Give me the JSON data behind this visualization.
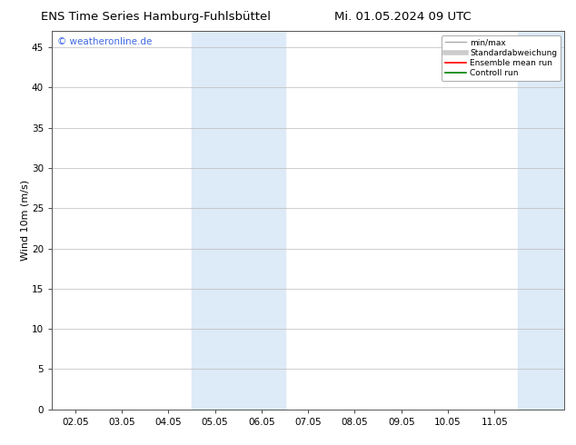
{
  "title_left": "ENS Time Series Hamburg-Fuhlsbüttel",
  "title_right": "Mi. 01.05.2024 09 UTC",
  "ylabel": "Wind 10m (m/s)",
  "xlabel_ticks": [
    "02.05",
    "03.05",
    "04.05",
    "05.05",
    "06.05",
    "07.05",
    "08.05",
    "09.05",
    "10.05",
    "11.05"
  ],
  "ylim": [
    0,
    47
  ],
  "yticks": [
    0,
    5,
    10,
    15,
    20,
    25,
    30,
    35,
    40,
    45
  ],
  "background_color": "#ffffff",
  "plot_bg_color": "#ffffff",
  "shaded_regions": [
    {
      "x_start": 4.0,
      "x_end": 6.0,
      "color": "#ddeaf7"
    },
    {
      "x_start": 11.0,
      "x_end": 12.0,
      "color": "#ddeaf7"
    }
  ],
  "watermark_text": "© weatheronline.de",
  "watermark_color": "#4169e1",
  "legend_entries": [
    {
      "label": "min/max",
      "color": "#aaaaaa",
      "lw": 1.0,
      "linestyle": "-"
    },
    {
      "label": "Standardabweichung",
      "color": "#cccccc",
      "lw": 4,
      "linestyle": "-"
    },
    {
      "label": "Ensemble mean run",
      "color": "#ff0000",
      "lw": 1.2,
      "linestyle": "-"
    },
    {
      "label": "Controll run",
      "color": "#008000",
      "lw": 1.2,
      "linestyle": "-"
    }
  ],
  "grid_color": "#bbbbbb",
  "tick_label_fontsize": 7.5,
  "title_fontsize": 9.5,
  "ylabel_fontsize": 8,
  "border_color": "#555555",
  "x_range": [
    1.0,
    12.0
  ],
  "tick_positions": [
    1.5,
    2.5,
    3.5,
    4.5,
    5.5,
    6.5,
    7.5,
    8.5,
    9.5,
    10.5
  ]
}
